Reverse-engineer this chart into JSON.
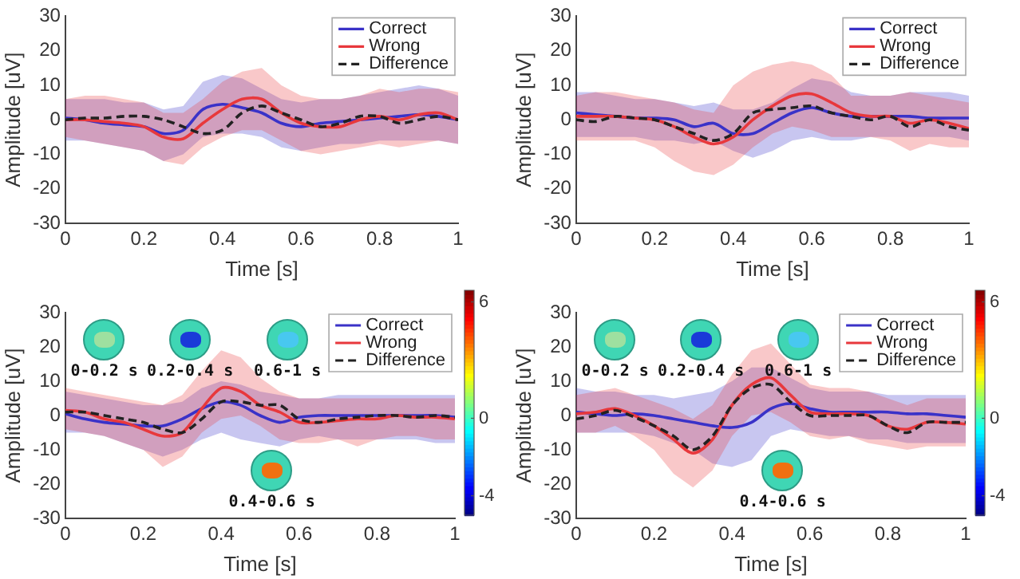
{
  "chart_data": [
    {
      "type": "line",
      "xlabel": "Time [s]",
      "ylabel": "Amplitude [uV]",
      "xlim": [
        0,
        1
      ],
      "xticks": [
        0,
        0.2,
        0.4,
        0.6,
        0.8,
        1
      ],
      "ylim": [
        -30,
        30
      ],
      "yticks": [
        -30,
        -20,
        -10,
        0,
        10,
        20,
        30
      ],
      "legend": "top right",
      "x": [
        0,
        0.05,
        0.1,
        0.15,
        0.2,
        0.25,
        0.3,
        0.35,
        0.4,
        0.45,
        0.5,
        0.55,
        0.6,
        0.65,
        0.7,
        0.75,
        0.8,
        0.85,
        0.9,
        0.95,
        1
      ],
      "series": [
        {
          "name": "Correct",
          "color": "#3a32c8",
          "values": [
            0.5,
            0,
            -1,
            -1.5,
            -2,
            -4,
            -3,
            3,
            4.5,
            3.5,
            2,
            -1,
            -2,
            -1,
            -0.5,
            0,
            0.5,
            1,
            1.5,
            1,
            0
          ],
          "lower": [
            -6,
            -6,
            -7,
            -8,
            -9,
            -12,
            -10,
            -5,
            -4,
            -4,
            -5,
            -8,
            -9,
            -8,
            -7,
            -7,
            -6,
            -6,
            -6,
            -6,
            -7
          ],
          "upper": [
            6,
            6,
            6,
            5,
            5,
            3,
            4,
            11,
            13,
            12,
            9,
            6,
            5,
            6,
            6,
            7,
            8,
            9,
            10,
            9,
            7
          ]
        },
        {
          "name": "Wrong",
          "color": "#e8383c",
          "values": [
            0,
            0,
            -0.5,
            -1,
            -2,
            -5,
            -5.5,
            -1,
            3,
            6,
            6,
            2,
            -1,
            -2,
            -2,
            0,
            1,
            0,
            1.5,
            2,
            0
          ],
          "lower": [
            -5,
            -6,
            -7,
            -8,
            -9,
            -12,
            -13,
            -8,
            -5,
            -3,
            -3,
            -6,
            -9,
            -10,
            -9,
            -8,
            -7,
            -8,
            -7,
            -6,
            -7
          ],
          "upper": [
            6,
            7,
            7,
            6,
            5,
            2,
            2,
            6,
            11,
            14,
            15,
            10,
            7,
            6,
            6,
            7,
            9,
            8,
            9,
            9,
            8
          ]
        },
        {
          "name": "Difference",
          "color": "#222222",
          "line_style": "dashed",
          "values": [
            0,
            0.5,
            0.5,
            1,
            1,
            0,
            -2,
            -4,
            -3,
            2,
            4,
            2,
            0,
            -2,
            -1,
            1,
            1,
            -1,
            0,
            1,
            0
          ]
        }
      ]
    },
    {
      "type": "line",
      "xlabel": "Time [s]",
      "ylabel": "Amplitude [uV]",
      "xlim": [
        0,
        1
      ],
      "xticks": [
        0,
        0.2,
        0.4,
        0.6,
        0.8,
        1
      ],
      "ylim": [
        -30,
        30
      ],
      "yticks": [
        -30,
        -20,
        -10,
        0,
        10,
        20,
        30
      ],
      "legend": "top right",
      "x": [
        0,
        0.05,
        0.1,
        0.15,
        0.2,
        0.25,
        0.3,
        0.35,
        0.4,
        0.45,
        0.5,
        0.55,
        0.6,
        0.65,
        0.7,
        0.75,
        0.8,
        0.85,
        0.9,
        0.95,
        1
      ],
      "series": [
        {
          "name": "Correct",
          "color": "#3a32c8",
          "values": [
            2,
            1.5,
            1,
            0.5,
            0.5,
            0,
            -2,
            -1,
            -4,
            -4,
            -1,
            2,
            3.5,
            2,
            1,
            1,
            1,
            1,
            0.5,
            0.5,
            0.5
          ],
          "lower": [
            -5,
            -5,
            -5,
            -5,
            -6,
            -6,
            -7,
            -6,
            -9,
            -11,
            -9,
            -6,
            -5,
            -6,
            -6,
            -5,
            -5,
            -5,
            -5,
            -5,
            -6
          ],
          "upper": [
            8,
            8,
            7,
            6,
            6,
            5,
            4,
            5,
            3,
            3,
            5,
            9,
            12,
            11,
            8,
            7,
            7,
            8,
            8,
            8,
            7
          ]
        },
        {
          "name": "Wrong",
          "color": "#e8383c",
          "values": [
            1,
            1,
            1,
            0.5,
            0,
            -2,
            -5,
            -7,
            -5,
            0,
            4,
            7,
            7.5,
            5,
            2,
            1,
            1,
            -1,
            0,
            -1,
            -2.5
          ],
          "lower": [
            -6,
            -6,
            -6,
            -6,
            -8,
            -12,
            -15,
            -16,
            -13,
            -8,
            -4,
            -2,
            -3,
            -5,
            -5,
            -5,
            -6,
            -9,
            -7,
            -8,
            -8
          ],
          "upper": [
            7,
            8,
            8,
            7,
            6,
            5,
            3,
            2,
            10,
            14,
            16,
            17,
            16,
            13,
            7,
            7,
            7,
            8,
            7,
            6,
            5
          ]
        },
        {
          "name": "Difference",
          "color": "#222222",
          "line_style": "dashed",
          "values": [
            0,
            -0.5,
            1,
            0.5,
            0,
            -2,
            -4,
            -6,
            -4,
            2,
            3,
            3.5,
            4,
            2,
            1,
            0,
            1,
            -2,
            0,
            -2,
            -3
          ]
        }
      ]
    },
    {
      "type": "line",
      "xlabel": "Time [s]",
      "ylabel": "Amplitude [uV]",
      "xlim": [
        0,
        1
      ],
      "xticks": [
        0,
        0.2,
        0.4,
        0.6,
        0.8,
        1
      ],
      "ylim": [
        -30,
        30
      ],
      "yticks": [
        -30,
        -20,
        -10,
        0,
        10,
        20,
        30
      ],
      "legend": "top right",
      "clim": [
        -5,
        6.6
      ],
      "cticks": [
        -4,
        0,
        6
      ],
      "annotations": [
        "0-0.2 s",
        "0.2-0.4 s",
        "0.6-1 s",
        "0.4-0.6 s"
      ],
      "x": [
        0,
        0.05,
        0.1,
        0.15,
        0.2,
        0.25,
        0.3,
        0.35,
        0.4,
        0.45,
        0.5,
        0.55,
        0.6,
        0.65,
        0.7,
        0.75,
        0.8,
        0.85,
        0.9,
        0.95,
        1
      ],
      "series": [
        {
          "name": "Correct",
          "color": "#3a32c8",
          "values": [
            0.5,
            -1,
            -2,
            -2.5,
            -3,
            -3,
            -1,
            2,
            4,
            3,
            0,
            -2,
            -0.5,
            0,
            0,
            0,
            0,
            0,
            0,
            0,
            -0.5
          ],
          "lower": [
            -5,
            -5,
            -6,
            -8,
            -10,
            -12,
            -10,
            -7,
            -5,
            -7,
            -8,
            -9,
            -7,
            -6,
            -7,
            -7,
            -7,
            -7,
            -7,
            -8,
            -8
          ],
          "upper": [
            7,
            6,
            5,
            4,
            3,
            3,
            4,
            8,
            10,
            9,
            7,
            6,
            5,
            5,
            6,
            6,
            6,
            6,
            6,
            6,
            6
          ]
        },
        {
          "name": "Wrong",
          "color": "#e8383c",
          "values": [
            1.5,
            1,
            -1,
            -2,
            -4,
            -6,
            -5,
            2,
            8,
            7,
            3,
            1,
            -2,
            -2,
            -1.5,
            -1,
            -1,
            0,
            -0.5,
            -0.5,
            -1
          ],
          "lower": [
            -4,
            -5,
            -6,
            -8,
            -10,
            -15,
            -12,
            -5,
            -1,
            0,
            -3,
            -7,
            -8,
            -8,
            -7,
            -9,
            -7,
            -6,
            -6,
            -7,
            -7
          ],
          "upper": [
            8,
            7,
            6,
            5,
            4,
            3,
            6,
            13,
            19,
            17,
            11,
            7,
            5,
            5,
            5,
            5,
            5,
            5,
            5,
            5,
            5
          ]
        },
        {
          "name": "Difference",
          "color": "#222222",
          "line_style": "dashed",
          "values": [
            1,
            1,
            0,
            -1,
            -2,
            -4,
            -5,
            -1,
            4,
            4,
            3,
            3,
            -1,
            -2,
            -1,
            -0.5,
            0,
            0,
            -0.5,
            0,
            -0.5
          ]
        }
      ]
    },
    {
      "type": "line",
      "xlabel": "Time [s]",
      "ylabel": "Amplitude [uV]",
      "xlim": [
        0,
        1
      ],
      "xticks": [
        0,
        0.2,
        0.4,
        0.6,
        0.8,
        1
      ],
      "ylim": [
        -30,
        30
      ],
      "yticks": [
        -30,
        -20,
        -10,
        0,
        10,
        20,
        30
      ],
      "legend": "top right",
      "clim": [
        -5,
        6.6
      ],
      "cticks": [
        -4,
        0,
        6
      ],
      "annotations": [
        "0-0.2 s",
        "0.2-0.4 s",
        "0.6-1 s",
        "0.4-0.6 s"
      ],
      "x": [
        0,
        0.05,
        0.1,
        0.15,
        0.2,
        0.25,
        0.3,
        0.35,
        0.4,
        0.45,
        0.5,
        0.55,
        0.6,
        0.65,
        0.7,
        0.75,
        0.8,
        0.85,
        0.9,
        0.95,
        1
      ],
      "series": [
        {
          "name": "Correct",
          "color": "#3a32c8",
          "values": [
            1,
            0.5,
            0,
            0.5,
            0,
            -1,
            -2,
            -3,
            -3.5,
            -2,
            2,
            3.5,
            2,
            1,
            1,
            1,
            1,
            0.5,
            0.5,
            0,
            -0.5
          ],
          "lower": [
            -5,
            -5,
            -5,
            -5,
            -6,
            -8,
            -10,
            -14,
            -15,
            -13,
            -6,
            -4,
            -5,
            -6,
            -6,
            -7,
            -7,
            -8,
            -8,
            -8,
            -8
          ],
          "upper": [
            8,
            7,
            7,
            6,
            6,
            5,
            6,
            7,
            10,
            14,
            14,
            11,
            8,
            7,
            7,
            7,
            6,
            6,
            6,
            6,
            6
          ]
        },
        {
          "name": "Wrong",
          "color": "#e8383c",
          "values": [
            0.5,
            1,
            2,
            0,
            -3,
            -7,
            -11,
            -7,
            3,
            9,
            11,
            6,
            1,
            0.5,
            0.5,
            0,
            -3,
            -4,
            -2,
            -2,
            -2.5
          ],
          "lower": [
            -5,
            -5,
            -3,
            -6,
            -10,
            -17,
            -21,
            -16,
            -6,
            0,
            1,
            -2,
            -6,
            -7,
            -6,
            -8,
            -9,
            -10,
            -9,
            -9,
            -9
          ],
          "upper": [
            6,
            7,
            8,
            6,
            4,
            2,
            -1,
            3,
            12,
            19,
            21,
            15,
            9,
            8,
            8,
            7,
            5,
            3,
            5,
            5,
            5
          ]
        },
        {
          "name": "Difference",
          "color": "#222222",
          "line_style": "dashed",
          "values": [
            -1,
            0,
            1.5,
            -0.5,
            -3,
            -6,
            -10,
            -6,
            3,
            8,
            9,
            4,
            0,
            0,
            0,
            0,
            -3,
            -5,
            -2,
            -2,
            -2
          ]
        }
      ]
    }
  ]
}
